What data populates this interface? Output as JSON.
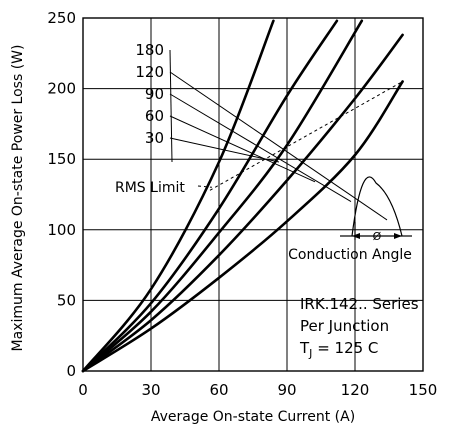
{
  "chart_data": {
    "type": "line",
    "title": "",
    "xlabel": "Average On-state Current (A)",
    "ylabel": "Maximum Average On-state Power Loss (W)",
    "xlim": [
      0,
      150
    ],
    "ylim": [
      0,
      250
    ],
    "x_ticks": [
      "0",
      "30",
      "60",
      "90",
      "120",
      "150"
    ],
    "y_ticks": [
      "0",
      "50",
      "100",
      "150",
      "200",
      "250"
    ],
    "grid": true,
    "series": [
      {
        "name": "180",
        "x": [
          0,
          30,
          60,
          84
        ],
        "y": [
          0,
          58,
          148,
          248
        ]
      },
      {
        "name": "120",
        "x": [
          0,
          30,
          60,
          90,
          112
        ],
        "y": [
          0,
          48,
          115,
          195,
          248
        ]
      },
      {
        "name": "90",
        "x": [
          0,
          30,
          60,
          90,
          123
        ],
        "y": [
          0,
          42,
          98,
          160,
          248
        ]
      },
      {
        "name": "60",
        "x": [
          0,
          30,
          60,
          90,
          120,
          141
        ],
        "y": [
          0,
          36,
          82,
          135,
          193,
          238
        ]
      },
      {
        "name": "30",
        "x": [
          0,
          30,
          60,
          90,
          120,
          141
        ],
        "y": [
          0,
          30,
          66,
          106,
          153,
          205
        ]
      }
    ],
    "rms_limit": {
      "label": "RMS Limit",
      "x": [
        56,
        141
      ],
      "y": [
        128,
        205
      ]
    },
    "annotations": {
      "conduction_angle": "Conduction Angle",
      "angle_symbol": "Ø",
      "series_name": "IRK.142.. Series",
      "per_junction": "Per Junction",
      "tj_prefix": "T",
      "tj_sub": "J",
      "tj_value": " = 125 C"
    }
  }
}
